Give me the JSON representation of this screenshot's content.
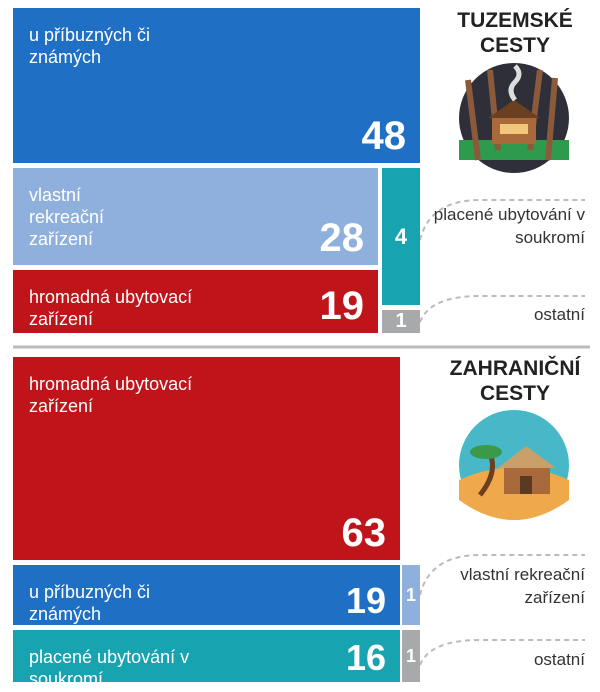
{
  "chart_data": [
    {
      "type": "treemap",
      "title": "TUZEMSKÉ CESTY",
      "categories": [
        "u příbuzných či známých",
        "vlastní rekreační zařízení",
        "hromadná ubytovací zařízení",
        "placené ubytování v soukromí",
        "ostatní"
      ],
      "values": [
        48,
        28,
        19,
        4,
        1
      ],
      "colors": [
        "#1f6fc5",
        "#8fb0dc",
        "#c0141b",
        "#17a3b0",
        "#a7a9ab"
      ]
    },
    {
      "type": "treemap",
      "title": "ZAHRANIČNÍ CESTY",
      "categories": [
        "hromadná ubytovací zařízení",
        "u příbuzných či známých",
        "placené ubytování v soukromí",
        "vlastní rekreační zařízení",
        "ostatní"
      ],
      "values": [
        63,
        19,
        16,
        1,
        1
      ],
      "colors": [
        "#c0141b",
        "#1f6fc5",
        "#17a3b0",
        "#8fb0dc",
        "#a7a9ab"
      ]
    }
  ]
}
